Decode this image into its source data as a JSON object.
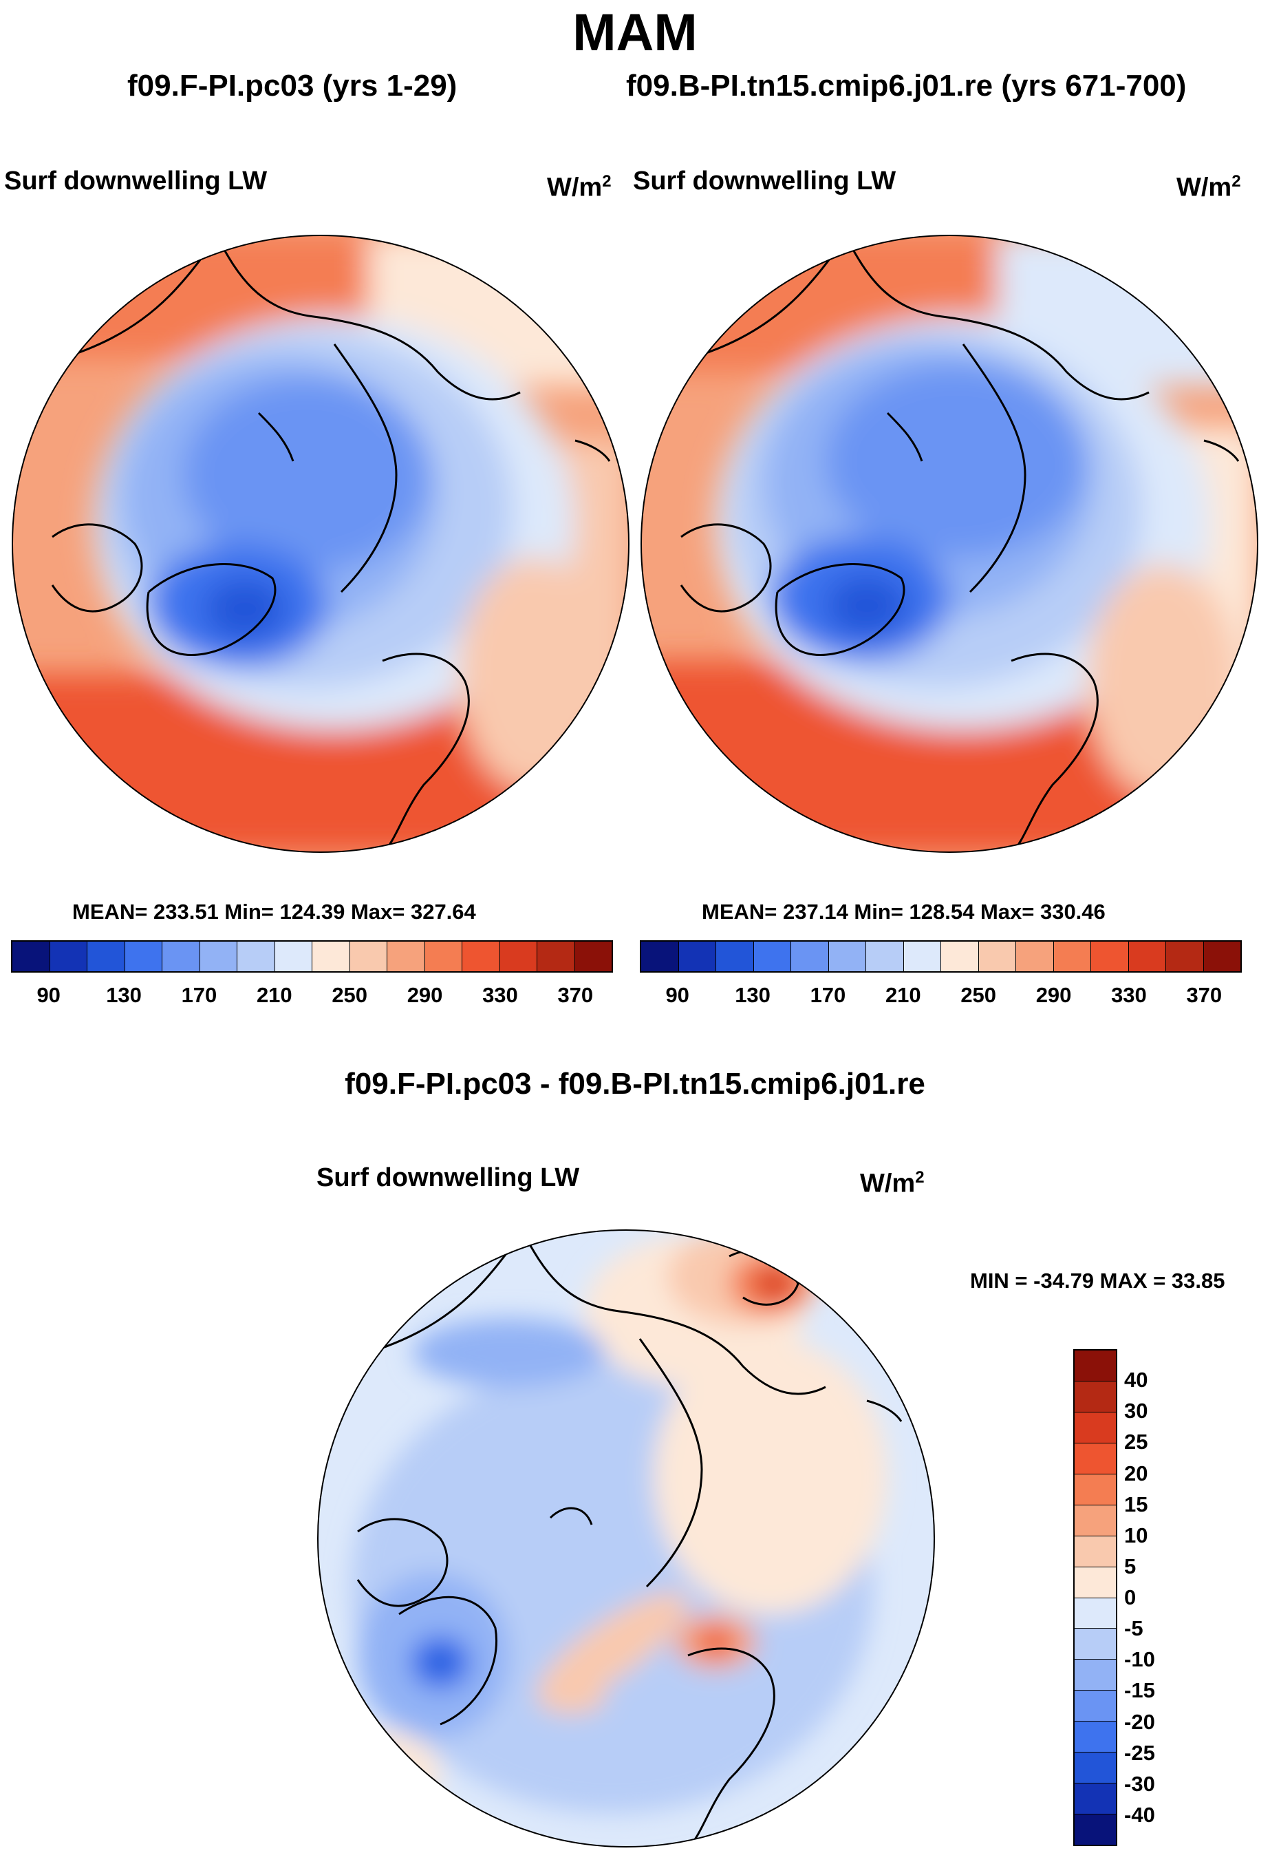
{
  "season": "MAM",
  "panels": [
    {
      "case_title": "f09.F-PI.pc03 (yrs 1-29)",
      "variable": "Surf downwelling LW",
      "units": "W/m",
      "units_exp": "2",
      "stats": "MEAN= 233.51  Min= 124.39  Max= 327.64"
    },
    {
      "case_title": "f09.B-PI.tn15.cmip6.j01.re (yrs 671-700)",
      "variable": "Surf downwelling LW",
      "units": "W/m",
      "units_exp": "2",
      "stats": "MEAN= 237.14  Min= 128.54  Max= 330.46"
    }
  ],
  "abs_colorbar": {
    "colors": [
      "#08137a",
      "#1333b5",
      "#2255d8",
      "#3e73ee",
      "#6a94f3",
      "#92b2f5",
      "#b7cdf7",
      "#dde9fb",
      "#fde8d8",
      "#f9c9ae",
      "#f6a27c",
      "#f47d52",
      "#ee5530",
      "#d93b1f",
      "#b42914",
      "#8b1108"
    ],
    "labels": [
      "90",
      "130",
      "170",
      "210",
      "250",
      "290",
      "330",
      "370"
    ]
  },
  "diff": {
    "title": "f09.F-PI.pc03 - f09.B-PI.tn15.cmip6.j01.re",
    "variable": "Surf downwelling LW",
    "units": "W/m",
    "units_exp": "2",
    "stats": "MIN = -34.79 MAX =  33.85",
    "colorbar": {
      "colors": [
        "#8b1108",
        "#b42914",
        "#d93b1f",
        "#ee5530",
        "#f47d52",
        "#f6a27c",
        "#f9c9ae",
        "#fde8d8",
        "#dde9fb",
        "#b7cdf7",
        "#92b2f5",
        "#6a94f3",
        "#3e73ee",
        "#2255d8",
        "#1333b5",
        "#08137a"
      ],
      "labels": [
        "40",
        "30",
        "25",
        "20",
        "15",
        "10",
        "5",
        "0",
        "-5",
        "-10",
        "-15",
        "-20",
        "-25",
        "-30",
        "-40"
      ]
    }
  }
}
